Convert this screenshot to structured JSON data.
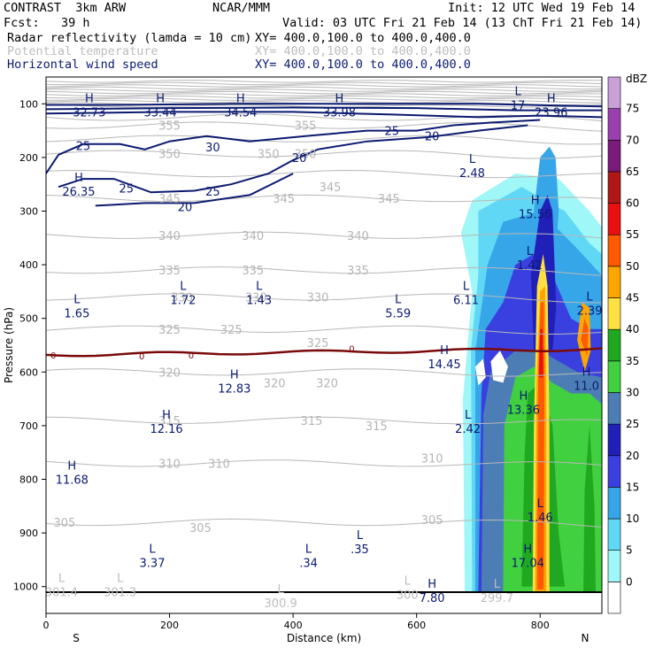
{
  "header": {
    "model": "CONTRAST  3km ARW",
    "center": "NCAR/MMM",
    "init": "Init: 12 UTC Wed 19 Feb 14",
    "fcst": "Fcst:   39 h",
    "valid": "Valid: 03 UTC Fri 21 Feb 14 (13 ChT Fri 21 Feb 14)",
    "fields": [
      {
        "name": "Radar reflectivity (lamda = 10 cm)",
        "xy": "XY= 400.0,100.0 to 400.0,400.0",
        "color": "#000000"
      },
      {
        "name": "Potential temperature",
        "xy": "XY= 400.0,100.0 to 400.0,400.0",
        "color": "#bdbdbd"
      },
      {
        "name": "Horizontal wind speed",
        "xy": "XY= 400.0,100.0 to 400.0,400.0",
        "color": "#0b1a70"
      }
    ]
  },
  "chart_data": {
    "type": "heatmap",
    "title": "",
    "xlabel": "Distance (km)",
    "ylabel": "Pressure (hPa)",
    "xlim": [
      0,
      900
    ],
    "ylim": [
      1050,
      50
    ],
    "x_ticks": [
      0,
      200,
      400,
      600,
      800
    ],
    "y_ticks": [
      100,
      200,
      300,
      400,
      500,
      600,
      700,
      800,
      900,
      1000
    ],
    "x_end_labels": {
      "left": "S",
      "right": "N"
    },
    "colorbar": {
      "unit": "dBZ",
      "levels": [
        0,
        5,
        10,
        15,
        20,
        25,
        30,
        35,
        40,
        45,
        50,
        55,
        60,
        65,
        70,
        75
      ],
      "colors": [
        "#ffffff",
        "#9ff7f7",
        "#5fd7f5",
        "#36a6e8",
        "#3a3fe0",
        "#2020b8",
        "#4c7eb5",
        "#40d040",
        "#20a820",
        "#ffe040",
        "#ffa500",
        "#ff5a00",
        "#e81010",
        "#b01818",
        "#7a1a7a",
        "#9a3fb0",
        "#c9a0d8"
      ]
    },
    "theta_labels": [
      {
        "x": 200,
        "p": 140,
        "t": "355"
      },
      {
        "x": 420,
        "p": 140,
        "t": "355"
      },
      {
        "x": 200,
        "p": 193,
        "t": "350"
      },
      {
        "x": 360,
        "p": 193,
        "t": "350"
      },
      {
        "x": 420,
        "p": 193,
        "t": "350"
      },
      {
        "x": 200,
        "p": 276,
        "t": "345"
      },
      {
        "x": 385,
        "p": 276,
        "t": "345"
      },
      {
        "x": 555,
        "p": 276,
        "t": "345"
      },
      {
        "x": 460,
        "p": 255,
        "t": "345"
      },
      {
        "x": 200,
        "p": 345,
        "t": "340"
      },
      {
        "x": 335,
        "p": 345,
        "t": "340"
      },
      {
        "x": 505,
        "p": 345,
        "t": "340"
      },
      {
        "x": 200,
        "p": 410,
        "t": "335"
      },
      {
        "x": 335,
        "p": 410,
        "t": "335"
      },
      {
        "x": 505,
        "p": 410,
        "t": "335"
      },
      {
        "x": 220,
        "p": 460,
        "t": "330"
      },
      {
        "x": 340,
        "p": 460,
        "t": "330"
      },
      {
        "x": 440,
        "p": 460,
        "t": "330"
      },
      {
        "x": 200,
        "p": 520,
        "t": "325"
      },
      {
        "x": 300,
        "p": 520,
        "t": "325"
      },
      {
        "x": 440,
        "p": 545,
        "t": "325"
      },
      {
        "x": 200,
        "p": 600,
        "t": "320"
      },
      {
        "x": 370,
        "p": 620,
        "t": "320"
      },
      {
        "x": 455,
        "p": 620,
        "t": "320"
      },
      {
        "x": 200,
        "p": 690,
        "t": "315"
      },
      {
        "x": 430,
        "p": 690,
        "t": "315"
      },
      {
        "x": 535,
        "p": 700,
        "t": "315"
      },
      {
        "x": 200,
        "p": 770,
        "t": "310"
      },
      {
        "x": 280,
        "p": 770,
        "t": "310"
      },
      {
        "x": 625,
        "p": 760,
        "t": "310"
      },
      {
        "x": 30,
        "p": 880,
        "t": "305"
      },
      {
        "x": 250,
        "p": 890,
        "t": "305"
      },
      {
        "x": 625,
        "p": 875,
        "t": "305"
      }
    ],
    "wind_labels": [
      {
        "x": 60,
        "p": 178,
        "t": "25"
      },
      {
        "x": 270,
        "p": 180,
        "t": "30"
      },
      {
        "x": 410,
        "p": 200,
        "t": "20"
      },
      {
        "x": 560,
        "p": 150,
        "t": "25"
      },
      {
        "x": 625,
        "p": 160,
        "t": "20"
      },
      {
        "x": 130,
        "p": 257,
        "t": "25"
      },
      {
        "x": 270,
        "p": 263,
        "t": "25"
      },
      {
        "x": 225,
        "p": 292,
        "t": "20"
      }
    ],
    "extrema": [
      {
        "x": 70,
        "p": 105,
        "kind": "H",
        "value": "32.73",
        "color": "#0b1a70"
      },
      {
        "x": 185,
        "p": 105,
        "kind": "H",
        "value": "33.44",
        "color": "#0b1a70"
      },
      {
        "x": 315,
        "p": 105,
        "kind": "H",
        "value": "34.54",
        "color": "#0b1a70"
      },
      {
        "x": 475,
        "p": 105,
        "kind": "H",
        "value": "33.98",
        "color": "#0b1a70"
      },
      {
        "x": 764,
        "p": 92,
        "kind": "L",
        "value": "17",
        "color": "#0b1a70"
      },
      {
        "x": 818,
        "p": 105,
        "kind": "H",
        "value": "23.96",
        "color": "#0b1a70"
      },
      {
        "x": 690,
        "p": 218,
        "kind": "L",
        "value": "2.48",
        "color": "#0b1a70"
      },
      {
        "x": 53,
        "p": 253,
        "kind": "H",
        "value": "26.35",
        "color": "#0b1a70"
      },
      {
        "x": 792,
        "p": 295,
        "kind": "H",
        "value": "15.56",
        "color": "#0b1a70"
      },
      {
        "x": 783,
        "p": 390,
        "kind": "L",
        "value": "1.42",
        "color": "#0b1a70"
      },
      {
        "x": 222,
        "p": 455,
        "kind": "L",
        "value": "1.72",
        "color": "#0b1a70"
      },
      {
        "x": 345,
        "p": 455,
        "kind": "L",
        "value": "1.43",
        "color": "#0b1a70"
      },
      {
        "x": 680,
        "p": 455,
        "kind": "L",
        "value": "6.11",
        "color": "#0b1a70"
      },
      {
        "x": 50,
        "p": 480,
        "kind": "L",
        "value": "1.65",
        "color": "#0b1a70"
      },
      {
        "x": 570,
        "p": 480,
        "kind": "L",
        "value": "5.59",
        "color": "#0b1a70"
      },
      {
        "x": 880,
        "p": 475,
        "kind": "L",
        "value": "2.39",
        "color": "#0b1a70"
      },
      {
        "x": 645,
        "p": 575,
        "kind": "H",
        "value": "14.45",
        "color": "#0b1a70"
      },
      {
        "x": 305,
        "p": 620,
        "kind": "H",
        "value": "12.83",
        "color": "#0b1a70"
      },
      {
        "x": 875,
        "p": 615,
        "kind": "H",
        "value": "11.0",
        "color": "#0b1a70"
      },
      {
        "x": 773,
        "p": 660,
        "kind": "H",
        "value": "13.36",
        "color": "#0b1a70"
      },
      {
        "x": 195,
        "p": 695,
        "kind": "H",
        "value": "12.16",
        "color": "#0b1a70"
      },
      {
        "x": 683,
        "p": 695,
        "kind": "L",
        "value": "2.42",
        "color": "#0b1a70"
      },
      {
        "x": 42,
        "p": 790,
        "kind": "H",
        "value": "11.68",
        "color": "#0b1a70"
      },
      {
        "x": 800,
        "p": 860,
        "kind": "L",
        "value": "1.46",
        "color": "#0b1a70"
      },
      {
        "x": 508,
        "p": 920,
        "kind": "L",
        "value": ".35",
        "color": "#0b1a70"
      },
      {
        "x": 172,
        "p": 945,
        "kind": "L",
        "value": "3.37",
        "color": "#0b1a70"
      },
      {
        "x": 425,
        "p": 945,
        "kind": "L",
        "value": ".34",
        "color": "#0b1a70"
      },
      {
        "x": 780,
        "p": 945,
        "kind": "H",
        "value": "17.04",
        "color": "#0b1a70"
      },
      {
        "x": 25,
        "p": 1000,
        "kind": "L",
        "value": "301.4",
        "color": "#bdbdbd"
      },
      {
        "x": 120,
        "p": 1000,
        "kind": "L",
        "value": "301.3",
        "color": "#bdbdbd"
      },
      {
        "x": 380,
        "p": 1020,
        "kind": "L",
        "value": "300.9",
        "color": "#bdbdbd"
      },
      {
        "x": 585,
        "p": 1005,
        "kind": "L",
        "value": "300",
        "color": "#bdbdbd"
      },
      {
        "x": 625,
        "p": 1010,
        "kind": "H",
        "value": "7.80",
        "color": "#0b1a70"
      },
      {
        "x": 730,
        "p": 1010,
        "kind": "L",
        "value": "299.7",
        "color": "#bdbdbd"
      }
    ],
    "marker_labels": [
      {
        "x": 12,
        "p": 568,
        "t": "0"
      },
      {
        "x": 155,
        "p": 570,
        "t": "0"
      },
      {
        "x": 235,
        "p": 568,
        "t": "0"
      },
      {
        "x": 495,
        "p": 556,
        "t": "0"
      }
    ]
  }
}
